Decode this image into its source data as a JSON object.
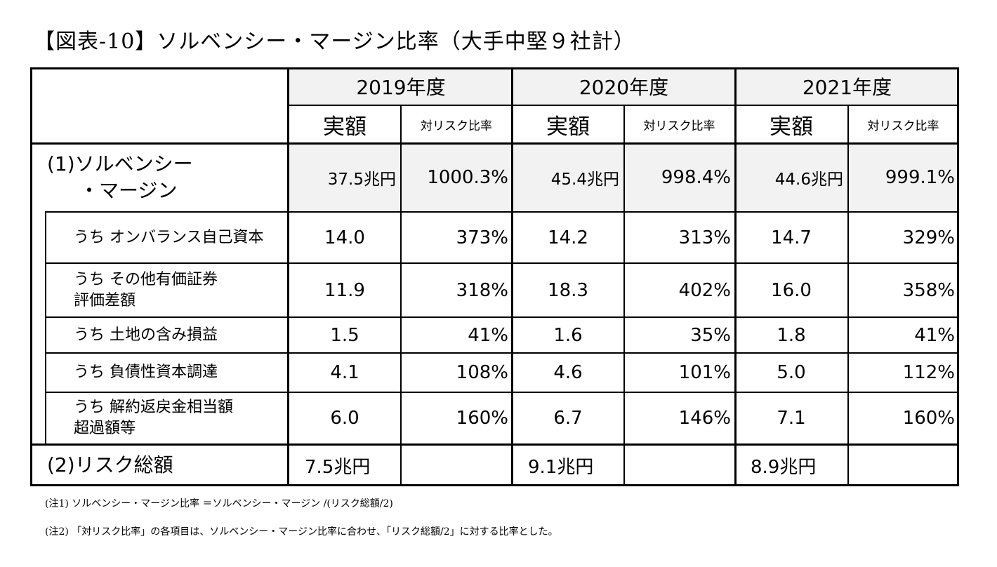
{
  "title": "【図表-10】ソルベンシー・マージン比率（大手中堅９社計）",
  "years": [
    "2019年度",
    "2020年度",
    "2021年度"
  ],
  "col_amount": "実額",
  "col_ratio": "対リスク比率",
  "solvency": {
    "label_line1": "(1)ソルベンシー",
    "label_line2": "・マージン",
    "values": [
      {
        "amount": "37.5兆円",
        "ratio": "1000.3%"
      },
      {
        "amount": "45.4兆円",
        "ratio": "998.4%"
      },
      {
        "amount": "44.6兆円",
        "ratio": "999.1%"
      }
    ]
  },
  "rows": [
    {
      "line1": "うち オンバランス自己資本",
      "line2": "",
      "values": [
        {
          "amount": "14.0",
          "ratio": "373%"
        },
        {
          "amount": "14.2",
          "ratio": "313%"
        },
        {
          "amount": "14.7",
          "ratio": "329%"
        }
      ]
    },
    {
      "line1": "うち その他有価証券",
      "line2": "評価差額",
      "values": [
        {
          "amount": "11.9",
          "ratio": "318%"
        },
        {
          "amount": "18.3",
          "ratio": "402%"
        },
        {
          "amount": "16.0",
          "ratio": "358%"
        }
      ]
    },
    {
      "line1": "うち 土地の含み損益",
      "line2": "",
      "values": [
        {
          "amount": "1.5",
          "ratio": "41%"
        },
        {
          "amount": "1.6",
          "ratio": "35%"
        },
        {
          "amount": "1.8",
          "ratio": "41%"
        }
      ]
    },
    {
      "line1": "うち 負債性資本調達",
      "line2": "",
      "values": [
        {
          "amount": "4.1",
          "ratio": "108%"
        },
        {
          "amount": "4.6",
          "ratio": "101%"
        },
        {
          "amount": "5.0",
          "ratio": "112%"
        }
      ]
    },
    {
      "line1": "うち 解約返戻金相当額",
      "line2": "超過額等",
      "values": [
        {
          "amount": "6.0",
          "ratio": "160%"
        },
        {
          "amount": "6.7",
          "ratio": "146%"
        },
        {
          "amount": "7.1",
          "ratio": "160%"
        }
      ]
    }
  ],
  "risk_total": {
    "label": "(2)リスク総額",
    "values": [
      "7.5兆円",
      "9.1兆円",
      "8.9兆円"
    ]
  },
  "notes": [
    "(注1) ソルベンシー・マージン比率 ＝ソルベンシー・マージン /(リスク総額/2)",
    "(注2) 「対リスク比率」の各項目は、ソルベンシー・マージン比率に合わせ、「リスク総額/2」に対する比率とした。"
  ]
}
